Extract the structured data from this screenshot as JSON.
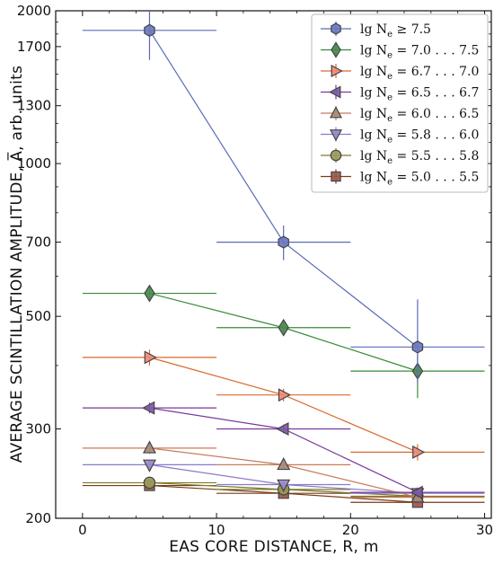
{
  "chart_data": {
    "type": "scatter",
    "xlabel": "EAS CORE DISTANCE,  R, m",
    "ylabel": "AVERAGE  SCINTILLATION  AMPLITUDE,  A̅,  arb. units",
    "xlim": [
      -2,
      30.5
    ],
    "ylim": [
      200,
      2000
    ],
    "yscale": "log",
    "x_ticks": [
      0,
      10,
      20,
      30
    ],
    "y_ticks": [
      200,
      300,
      500,
      700,
      1000,
      1300,
      1700,
      2000
    ],
    "x_tick_labels": [
      "0",
      "10",
      "20",
      "30"
    ],
    "y_tick_labels": [
      "200",
      "300",
      "500",
      "700",
      "1000",
      "1300",
      "1700",
      "2000"
    ],
    "legend_position": "top-right",
    "grid": false,
    "series": [
      {
        "name": "lg N_e ≥ 7.5",
        "label_main": "lg N",
        "label_sub": "e",
        "label_rest": " ≥ 7.5",
        "marker": "hexagon",
        "color": "#5b6bb8",
        "fill": "#6b78c0",
        "points": [
          {
            "x": 5,
            "y": 1830,
            "xerr": 5,
            "ylo": 1600,
            "yhi": 2000
          },
          {
            "x": 15,
            "y": 700,
            "xerr": 5,
            "ylo": 645,
            "yhi": 755
          },
          {
            "x": 25,
            "y": 435,
            "xerr": 5,
            "ylo": 370,
            "yhi": 540
          }
        ]
      },
      {
        "name": "lg N_e = 7.0 ... 7.5",
        "label_main": "lg N",
        "label_sub": "e",
        "label_rest": " = 7.0 . . . 7.5",
        "marker": "diamond",
        "color": "#3a8a3a",
        "fill": "#4a8a4e",
        "points": [
          {
            "x": 5,
            "y": 555,
            "xerr": 5,
            "ylo": 535,
            "yhi": 575
          },
          {
            "x": 15,
            "y": 475,
            "xerr": 5,
            "ylo": 460,
            "yhi": 490
          },
          {
            "x": 25,
            "y": 390,
            "xerr": 5,
            "ylo": 345,
            "yhi": 420
          }
        ]
      },
      {
        "name": "lg N_e = 6.7 ... 7.0",
        "label_main": "lg N",
        "label_sub": "e",
        "label_rest": " = 6.7 . . . 7.0",
        "marker": "triangle-right",
        "color": "#d86a2a",
        "fill": "#ef8a78",
        "points": [
          {
            "x": 5,
            "y": 415,
            "xerr": 5,
            "ylo": 400,
            "yhi": 430
          },
          {
            "x": 15,
            "y": 350,
            "xerr": 5,
            "ylo": 340,
            "yhi": 360
          },
          {
            "x": 25,
            "y": 270,
            "xerr": 5,
            "ylo": 260,
            "yhi": 280
          }
        ]
      },
      {
        "name": "lg N_e = 6.5 ... 6.7",
        "label_main": "lg N",
        "label_sub": "e",
        "label_rest": " = 6.5 . . . 6.7",
        "marker": "triangle-left",
        "color": "#7a3a9a",
        "fill": "#7d5aa6",
        "points": [
          {
            "x": 5,
            "y": 330,
            "xerr": 5,
            "ylo": 322,
            "yhi": 338
          },
          {
            "x": 15,
            "y": 300,
            "xerr": 5,
            "ylo": 294,
            "yhi": 306
          },
          {
            "x": 25,
            "y": 225,
            "xerr": 5,
            "ylo": 220,
            "yhi": 230
          }
        ]
      },
      {
        "name": "lg N_e = 6.0 ... 6.5",
        "label_main": "lg N",
        "label_sub": "e",
        "label_rest": " = 6.0 . . . 6.5",
        "marker": "triangle-up",
        "color": "#c87a5a",
        "fill": "#a88a7a",
        "points": [
          {
            "x": 5,
            "y": 275,
            "xerr": 5,
            "ylo": 268,
            "yhi": 282
          },
          {
            "x": 15,
            "y": 255,
            "xerr": 5,
            "ylo": 250,
            "yhi": 260
          },
          {
            "x": 25,
            "y": 220,
            "xerr": 5,
            "ylo": 216,
            "yhi": 224
          }
        ]
      },
      {
        "name": "lg N_e = 5.8 ... 6.0",
        "label_main": "lg N",
        "label_sub": "e",
        "label_rest": " = 5.8 . . . 6.0",
        "marker": "triangle-down",
        "color": "#8a7ac8",
        "fill": "#9a88c8",
        "points": [
          {
            "x": 5,
            "y": 255,
            "xerr": 5,
            "ylo": 250,
            "yhi": 260
          },
          {
            "x": 15,
            "y": 233,
            "xerr": 5,
            "ylo": 229,
            "yhi": 237
          },
          {
            "x": 25,
            "y": 224,
            "xerr": 5,
            "ylo": 221,
            "yhi": 227
          }
        ]
      },
      {
        "name": "lg N_e = 5.5 ... 5.8",
        "label_main": "lg N",
        "label_sub": "e",
        "label_rest": " = 5.5 . . . 5.8",
        "marker": "circle",
        "color": "#7a7a2a",
        "fill": "#9a9a5a",
        "points": [
          {
            "x": 5,
            "y": 235,
            "xerr": 5,
            "ylo": 231,
            "yhi": 239
          },
          {
            "x": 15,
            "y": 228,
            "xerr": 5,
            "ylo": 224,
            "yhi": 232
          },
          {
            "x": 25,
            "y": 221,
            "xerr": 5,
            "ylo": 218,
            "yhi": 224
          }
        ]
      },
      {
        "name": "lg N_e = 5.0 ... 5.5",
        "label_main": "lg N",
        "label_sub": "e",
        "label_rest": " = 5.0 . . . 5.5",
        "marker": "square",
        "color": "#7a3a1a",
        "fill": "#a0564a",
        "points": [
          {
            "x": 5,
            "y": 232,
            "xerr": 5,
            "ylo": 229,
            "yhi": 235
          },
          {
            "x": 15,
            "y": 224,
            "xerr": 5,
            "ylo": 221,
            "yhi": 227
          },
          {
            "x": 25,
            "y": 215,
            "xerr": 5,
            "ylo": 212,
            "yhi": 218
          }
        ]
      }
    ]
  }
}
